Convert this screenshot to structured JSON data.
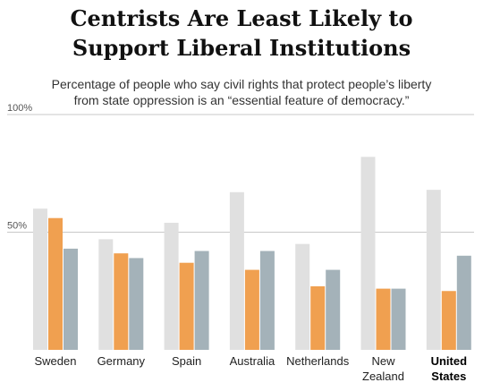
{
  "chart_data": {
    "type": "bar",
    "title_lines": [
      "Centrists Are Least Likely to",
      "Support Liberal Institutions"
    ],
    "subtitle_lines": [
      "Percentage of people who say civil rights that protect people’s liberty",
      "from state oppression is an “essential feature of democracy.”"
    ],
    "ylim": [
      0,
      100
    ],
    "yticks": [
      {
        "value": 100,
        "label": "100%"
      },
      {
        "value": 50,
        "label": "50%"
      }
    ],
    "categories": [
      {
        "lines": [
          "Sweden"
        ],
        "bold": false
      },
      {
        "lines": [
          "Germany"
        ],
        "bold": false
      },
      {
        "lines": [
          "Spain"
        ],
        "bold": false
      },
      {
        "lines": [
          "Australia"
        ],
        "bold": false
      },
      {
        "lines": [
          "Netherlands"
        ],
        "bold": false
      },
      {
        "lines": [
          "New",
          "Zealand"
        ],
        "bold": false
      },
      {
        "lines": [
          "United",
          "States"
        ],
        "bold": true
      }
    ],
    "series": [
      {
        "color": "#e0e0e0",
        "values": [
          60,
          47,
          54,
          67,
          45,
          82,
          68
        ]
      },
      {
        "color": "#f0a050",
        "values": [
          56,
          41,
          37,
          34,
          27,
          26,
          25
        ]
      },
      {
        "color": "#a4b2b9",
        "values": [
          43,
          39,
          42,
          42,
          34,
          26,
          40
        ]
      }
    ],
    "grid": true
  }
}
